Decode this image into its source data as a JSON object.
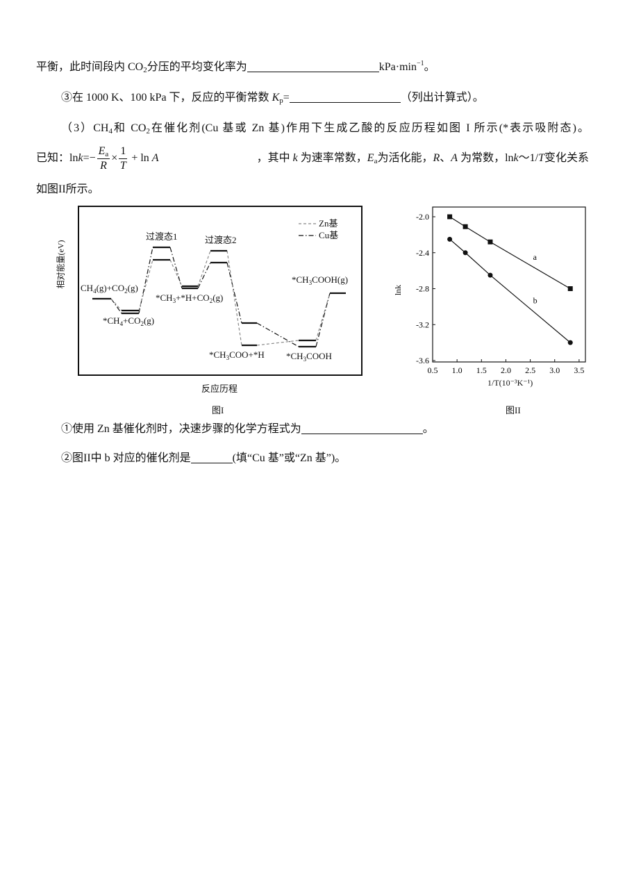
{
  "lines": [
    [
      {
        "t": "平衡，此时间段内 CO"
      },
      {
        "t": "2",
        "s": "sub"
      },
      {
        "t": "分压的平均变化率为"
      },
      {
        "blank": 190
      },
      {
        "t": "kPa·min"
      },
      {
        "t": "−1",
        "s": "sup"
      },
      {
        "t": "。"
      }
    ],
    [
      {
        "t": "③在 1000 K、100 kPa 下，反应的平衡常数 "
      },
      {
        "t": "K",
        "s": "i"
      },
      {
        "t": "p",
        "s": "sub"
      },
      {
        "t": "="
      },
      {
        "blank": 160
      },
      {
        "t": "（列出计算式）。"
      }
    ],
    [
      {
        "t": "（3）CH"
      },
      {
        "t": "4",
        "s": "sub"
      },
      {
        "t": "和 CO"
      },
      {
        "t": "2",
        "s": "sub"
      },
      {
        "t": "在催化剂(Cu 基或 Zn 基)作用下生成乙酸的反应历程如图 I 所示(*表示吸附态)。"
      }
    ],
    [
      {
        "t": "，其中 "
      },
      {
        "t": "k",
        "s": "i"
      },
      {
        "t": " 为速率常数，"
      },
      {
        "t": "E",
        "s": "i"
      },
      {
        "t": "a",
        "s": "sub"
      },
      {
        "t": "为活化能，"
      },
      {
        "t": "R",
        "s": "i"
      },
      {
        "t": "、"
      },
      {
        "t": "A",
        "s": "i"
      },
      {
        "t": " 为常数，ln"
      },
      {
        "t": "k",
        "s": "i"
      },
      {
        "t": "～1/"
      },
      {
        "t": "T",
        "s": "i"
      },
      {
        "t": "变化关系"
      }
    ],
    [
      {
        "t": "如图II所示。"
      }
    ],
    [
      {
        "t": "①使用 Zn 基催化剂时，决速步骤的化学方程式为"
      },
      {
        "blank": 175
      },
      {
        "t": "。"
      }
    ],
    [
      {
        "t": "②图II中 b 对应的催化剂是"
      },
      {
        "blank": 60
      },
      {
        "t": "(填“Cu 基”或“Zn 基”)。"
      }
    ]
  ],
  "formula": {
    "prefix": "已知：",
    "lhs": "ln",
    "lhs_var": "k",
    "eq": "=−",
    "num1": "E",
    "num1_sub": "a",
    "den1": "R",
    "times": "×",
    "num2": "1",
    "den2": "T",
    "plus": " + ln ",
    "A": "A"
  },
  "figure1": {
    "caption": "图I",
    "xlabel": "反应历程",
    "ylabel": "相对能量(eV)",
    "legend": [
      {
        "name": "Zn基",
        "style": "dashed",
        "color": "#888888"
      },
      {
        "name": "Cu基",
        "style": "dash-dot",
        "color": "#111111"
      }
    ],
    "labels": {
      "ts1": [
        {
          "t": "过渡态1"
        }
      ],
      "ts2": [
        {
          "t": "过渡态2"
        }
      ],
      "start": [
        {
          "t": "CH"
        },
        {
          "t": "4",
          "s": "sub"
        },
        {
          "t": "(g)+CO"
        },
        {
          "t": "2",
          "s": "sub"
        },
        {
          "t": "(g)"
        }
      ],
      "ads": [
        {
          "t": "*CH"
        },
        {
          "t": "4",
          "s": "sub"
        },
        {
          "t": "+CO"
        },
        {
          "t": "2",
          "s": "sub"
        },
        {
          "t": "(g)"
        }
      ],
      "mid": [
        {
          "t": "*CH"
        },
        {
          "t": "3",
          "s": "sub"
        },
        {
          "t": "+*H+CO"
        },
        {
          "t": "2",
          "s": "sub"
        },
        {
          "t": "(g)"
        }
      ],
      "coo": [
        {
          "t": "*CH"
        },
        {
          "t": "3",
          "s": "sub"
        },
        {
          "t": "COO+*H"
        }
      ],
      "cooh": [
        {
          "t": "*CH"
        },
        {
          "t": "3",
          "s": "sub"
        },
        {
          "t": "COOH"
        }
      ],
      "final": [
        {
          "t": "*CH"
        },
        {
          "t": "3",
          "s": "sub"
        },
        {
          "t": "COOH(g)"
        }
      ]
    }
  },
  "chart_data": [
    {
      "type": "scatter",
      "caption": "图II",
      "xlabel": "1/T(10⁻³K⁻¹)",
      "ylabel": "lnk",
      "xlim": [
        0.5,
        3.7
      ],
      "ylim": [
        -3.6,
        -1.93
      ],
      "xticks": [
        "0.5",
        "1.0",
        "1.5",
        "2.0",
        "2.5",
        "3.0",
        "3.5"
      ],
      "yticks": [
        "-2.0",
        "-2.4",
        "-2.8",
        "-3.2",
        "-3.6"
      ],
      "grid": false,
      "series": [
        {
          "name": "a",
          "marker": "square",
          "x": [
            0.85,
            1.17,
            1.68,
            3.32
          ],
          "y": [
            -2.0,
            -2.11,
            -2.28,
            -2.8
          ]
        },
        {
          "name": "b",
          "marker": "circle",
          "x": [
            0.85,
            1.17,
            1.68,
            3.32
          ],
          "y": [
            -2.25,
            -2.4,
            -2.65,
            -3.4
          ]
        }
      ]
    }
  ]
}
